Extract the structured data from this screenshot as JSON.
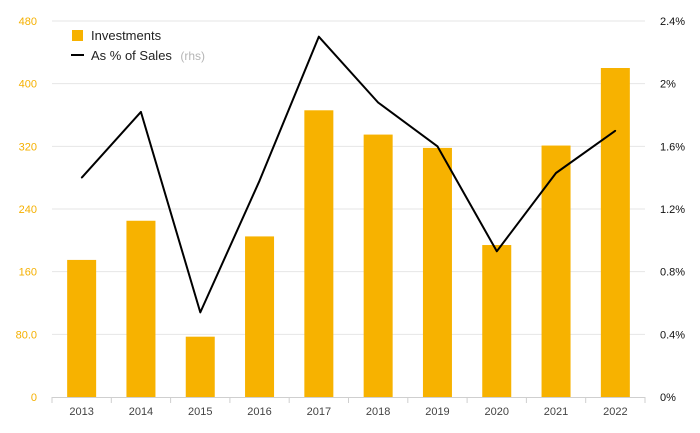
{
  "chart_data": {
    "type": "bar",
    "categories": [
      "2013",
      "2014",
      "2015",
      "2016",
      "2017",
      "2018",
      "2019",
      "2020",
      "2021",
      "2022"
    ],
    "series": [
      {
        "name": "Investments",
        "type": "bar",
        "axis": "left",
        "color": "#f7b200",
        "values": [
          175,
          225,
          77,
          205,
          366,
          335,
          318,
          194,
          321,
          420
        ]
      },
      {
        "name": "As % of Sales",
        "name_suffix": "(rhs)",
        "type": "line",
        "axis": "right",
        "color": "#000000",
        "values": [
          1.4,
          1.82,
          0.54,
          1.38,
          2.3,
          1.88,
          1.6,
          0.93,
          1.43,
          1.7
        ]
      }
    ],
    "y_left": {
      "ylim": [
        0,
        480
      ],
      "ticks": [
        0,
        80,
        160,
        240,
        320,
        400,
        480
      ],
      "tick_labels": [
        "0",
        "80.0",
        "160",
        "240",
        "320",
        "400",
        "480"
      ]
    },
    "y_right": {
      "ylim": [
        0,
        2.4
      ],
      "ticks": [
        0,
        0.4,
        0.8,
        1.2,
        1.6,
        2.0,
        2.4
      ],
      "tick_labels": [
        "0%",
        "0.4%",
        "0.8%",
        "1.2%",
        "1.6%",
        "2%",
        "2.4%"
      ]
    },
    "grid": true,
    "legend_position": "top-left"
  }
}
